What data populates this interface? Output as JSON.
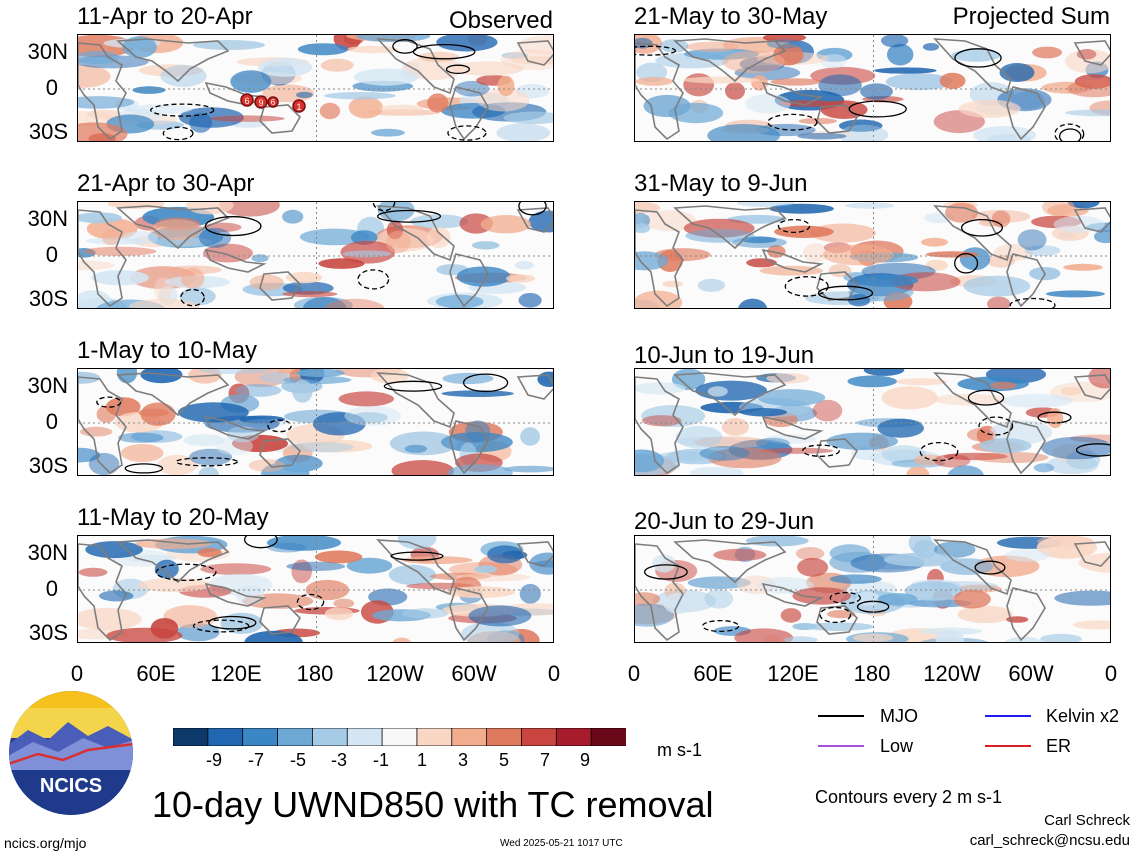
{
  "left_column_label": "Observed",
  "right_column_label": "Projected Sum",
  "panels": [
    {
      "title": "11-Apr to 20-Apr"
    },
    {
      "title": "21-Apr to 30-Apr"
    },
    {
      "title": "1-May to 10-May"
    },
    {
      "title": "11-May to 20-May"
    },
    {
      "title": "21-May to 30-May"
    },
    {
      "title": "31-May to 9-Jun"
    },
    {
      "title": "10-Jun to 19-Jun"
    },
    {
      "title": "20-Jun to 29-Jun"
    }
  ],
  "lat_labels": [
    "30N",
    "0",
    "30S"
  ],
  "lon_labels": [
    "0",
    "60E",
    "120E",
    "180",
    "120W",
    "60W",
    "0"
  ],
  "tc_markers": [
    "6",
    "9",
    "6",
    "1"
  ],
  "colorbar": {
    "ticks": [
      "-9",
      "-7",
      "-5",
      "-3",
      "-1",
      "1",
      "3",
      "5",
      "7",
      "9"
    ],
    "units": "m s-1",
    "colors": [
      "#0d3a6b",
      "#2066b0",
      "#3b86c4",
      "#6ea9d6",
      "#a6cbe6",
      "#d4e6f3",
      "#f8f8f8",
      "#f9d7c4",
      "#f2ad8f",
      "#e07a5e",
      "#c8463f",
      "#a61c2c",
      "#6a0718"
    ]
  },
  "legend": [
    {
      "label": "MJO",
      "color": "#000000"
    },
    {
      "label": "Kelvin x2",
      "color": "#1d1df0"
    },
    {
      "label": "Low",
      "color": "#a64fd8"
    },
    {
      "label": "ER",
      "color": "#d92020"
    }
  ],
  "contour_note": "Contours every 2 m s-1",
  "main_title": "10-day UWND850 with TC removal",
  "logo_text": "NCICS",
  "credit_name": "Carl Schreck",
  "credit_email": "carl_schreck@ncsu.edu",
  "url": "ncics.org/mjo",
  "timestamp": "Wed 2025-05-21 1017 UTC"
}
